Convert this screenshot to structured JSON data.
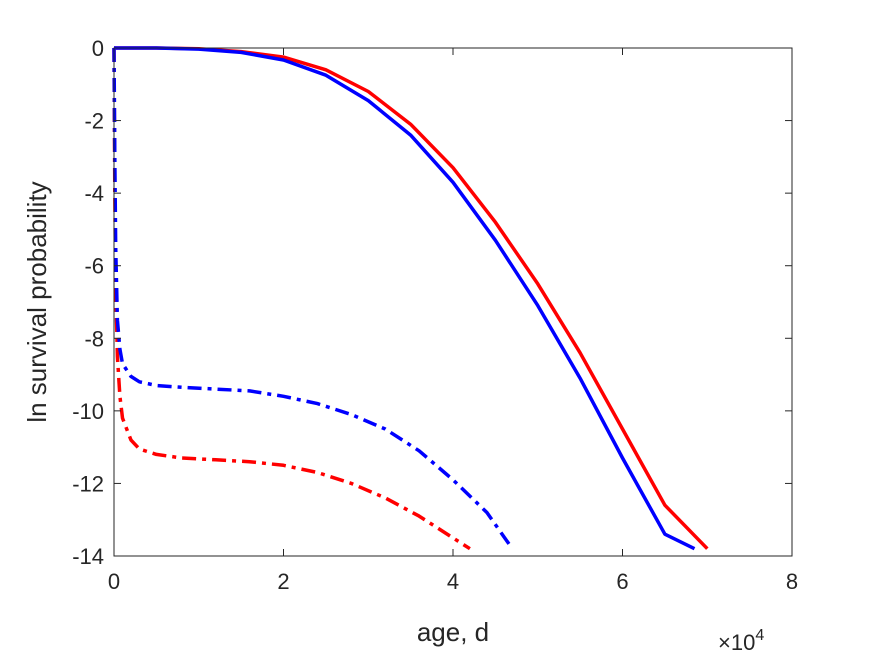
{
  "chart_data": {
    "type": "line",
    "title": "",
    "xlabel": "age, d",
    "ylabel": "ln survival probability",
    "x_exponent_label": {
      "base": "×10",
      "exp": "4"
    },
    "xlim": [
      0,
      80000
    ],
    "ylim": [
      -14,
      0
    ],
    "x_ticks": [
      0,
      20000,
      40000,
      60000,
      80000
    ],
    "x_tick_labels": [
      "0",
      "2",
      "4",
      "6",
      "8"
    ],
    "y_ticks": [
      0,
      -2,
      -4,
      -6,
      -8,
      -10,
      -12,
      -14
    ],
    "y_tick_labels": [
      "0",
      "-2",
      "-4",
      "-6",
      "-8",
      "-10",
      "-12",
      "-14"
    ],
    "grid": false,
    "box": true,
    "series": [
      {
        "color": "#ff0000",
        "style": "solid",
        "x": [
          0,
          5000,
          10000,
          15000,
          20000,
          25000,
          30000,
          35000,
          40000,
          45000,
          50000,
          55000,
          60000,
          65000,
          70000
        ],
        "y": [
          0,
          0,
          -0.02,
          -0.1,
          -0.25,
          -0.6,
          -1.2,
          -2.1,
          -3.3,
          -4.8,
          -6.5,
          -8.4,
          -10.5,
          -12.6,
          -13.8
        ]
      },
      {
        "color": "#0000ff",
        "style": "solid",
        "x": [
          0,
          5000,
          10000,
          15000,
          20000,
          25000,
          30000,
          35000,
          40000,
          45000,
          50000,
          55000,
          60000,
          65000,
          68500
        ],
        "y": [
          0,
          0,
          -0.03,
          -0.12,
          -0.33,
          -0.75,
          -1.45,
          -2.4,
          -3.7,
          -5.3,
          -7.1,
          -9.1,
          -11.3,
          -13.4,
          -13.8
        ]
      },
      {
        "color": "#ff0000",
        "style": "dashdot",
        "x": [
          0,
          100,
          200,
          400,
          700,
          1000,
          2000,
          3000,
          5000,
          8000,
          12000,
          16000,
          20000,
          24000,
          28000,
          32000,
          36000,
          40000,
          42000
        ],
        "y": [
          0,
          -4,
          -6.5,
          -8.5,
          -9.6,
          -10.2,
          -10.8,
          -11.05,
          -11.2,
          -11.3,
          -11.35,
          -11.4,
          -11.5,
          -11.7,
          -12.0,
          -12.4,
          -12.9,
          -13.5,
          -13.8
        ]
      },
      {
        "color": "#0000ff",
        "style": "dashdot",
        "x": [
          0,
          100,
          200,
          400,
          700,
          1000,
          2000,
          3000,
          5000,
          8000,
          12000,
          16000,
          20000,
          24000,
          28000,
          32000,
          36000,
          40000,
          44000,
          47000
        ],
        "y": [
          0,
          -3,
          -5.5,
          -7.5,
          -8.3,
          -8.7,
          -9.05,
          -9.2,
          -9.3,
          -9.35,
          -9.4,
          -9.45,
          -9.6,
          -9.8,
          -10.1,
          -10.5,
          -11.1,
          -11.9,
          -12.8,
          -13.8
        ]
      }
    ]
  }
}
